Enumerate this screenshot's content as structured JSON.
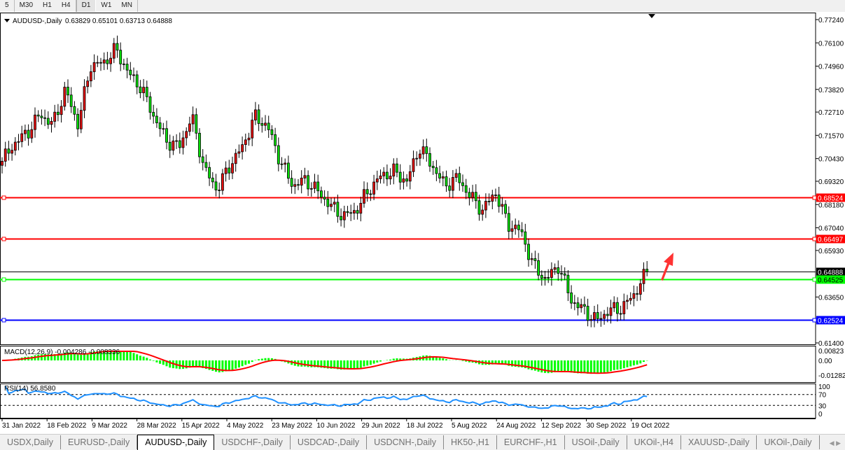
{
  "toolbar": {
    "timeframes": [
      "5",
      "M30",
      "H1",
      "H4",
      "D1",
      "W1",
      "MN"
    ],
    "active": "D1"
  },
  "chart": {
    "header": "AUDUSD-,Daily",
    "ohlc": "0.63829 0.65101 0.63713 0.64888",
    "price_ticks": [
      "0.77240",
      "0.76100",
      "0.74960",
      "0.73820",
      "0.72710",
      "0.71570",
      "0.70430",
      "0.69320",
      "0.68180",
      "0.67040",
      "0.65930",
      "0.63650",
      "0.61400"
    ],
    "hlines": [
      {
        "price": "0.68524",
        "color": "#ff0000"
      },
      {
        "price": "0.66497",
        "color": "#ff0000"
      },
      {
        "price": "0.64525",
        "color": "#00ff00"
      },
      {
        "price": "0.62524",
        "color": "#0000ff"
      }
    ],
    "current_price": "0.64888",
    "bull_color": "#e81010",
    "bear_color": "#00e000",
    "date_ticks": [
      "31 Jan 2022",
      "18 Feb 2022",
      "9 Mar 2022",
      "28 Mar 2022",
      "15 Apr 2022",
      "4 May 2022",
      "23 May 2022",
      "10 Jun 2022",
      "29 Jun 2022",
      "18 Jul 2022",
      "5 Aug 2022",
      "24 Aug 2022",
      "12 Sep 2022",
      "30 Sep 2022",
      "19 Oct 2022"
    ],
    "arrow_color": "#ff3333"
  },
  "chart_data": {
    "type": "candlestick",
    "symbol": "AUDUSD-",
    "timeframe": "Daily",
    "ylim": [
      0.614,
      0.7724
    ],
    "approx_close_path": [
      0.703,
      0.712,
      0.717,
      0.726,
      0.721,
      0.738,
      0.721,
      0.75,
      0.751,
      0.758,
      0.746,
      0.739,
      0.725,
      0.713,
      0.71,
      0.725,
      0.699,
      0.689,
      0.701,
      0.71,
      0.725,
      0.72,
      0.703,
      0.691,
      0.694,
      0.688,
      0.681,
      0.676,
      0.679,
      0.689,
      0.696,
      0.698,
      0.693,
      0.71,
      0.701,
      0.691,
      0.695,
      0.686,
      0.679,
      0.688,
      0.672,
      0.669,
      0.652,
      0.645,
      0.652,
      0.635,
      0.63,
      0.625,
      0.63,
      0.631,
      0.638,
      0.649
    ]
  },
  "macd": {
    "label": "MACD(12,26,9) -0.004286 -0.008336",
    "ticks": [
      "0.00823",
      "0.00",
      "-0.012827"
    ],
    "hist_color": "#00ff00",
    "signal_color": "#ff0000"
  },
  "rsi": {
    "label": "RSI(14) 56.8580",
    "ticks": [
      "100",
      "70",
      "30",
      "0"
    ],
    "line_color": "#1e90ff"
  },
  "tabs": [
    "USDX,Daily",
    "EURUSD-,Daily",
    "AUDUSD-,Daily",
    "USDCHF-,Daily",
    "USDCAD-,Daily",
    "USDCNH-,Daily",
    "HK50-,H1",
    "EURCHF-,H1",
    "USOil-,Daily",
    "UKOil-,H4",
    "XAUUSD-,Daily",
    "UKOil-,Daily"
  ],
  "active_tab": "AUDUSD-,Daily"
}
